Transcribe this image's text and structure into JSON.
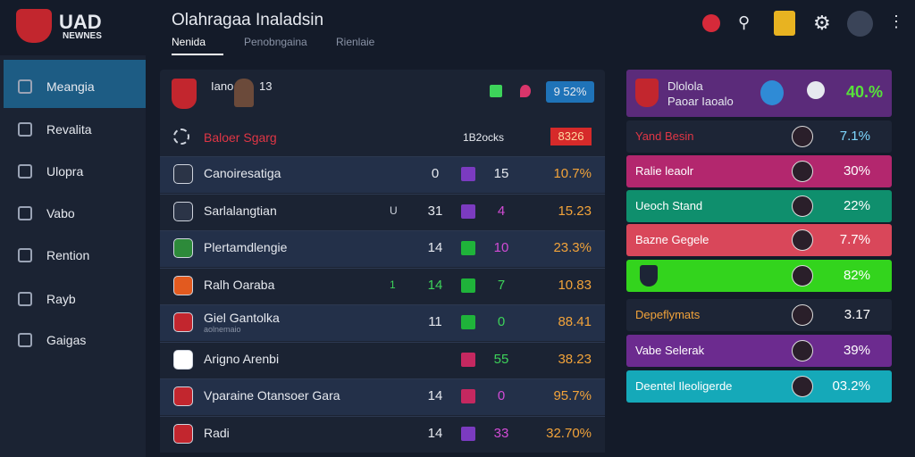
{
  "logo": {
    "top": "UAD",
    "bottom": "NEWNES"
  },
  "header": {
    "title": "Olahragaa Inaladsin",
    "tabs": [
      "Nenida",
      "Penobngaina",
      "Rienlaie"
    ]
  },
  "sidebar": {
    "items": [
      "Meangia",
      "Revalita",
      "Ulopra",
      "Vabo",
      "Rention",
      "Rayb",
      "Gaigas"
    ]
  },
  "table": {
    "top": {
      "name": "Iano",
      "number": "13",
      "badge": "9 52%"
    },
    "header": {
      "name": "Baloer Sgarg",
      "column": "1B2ocks",
      "value": "8326"
    },
    "rows": [
      {
        "name": "Canoiresatiga",
        "mark": null,
        "a": "0",
        "b": "15",
        "pct": "10.7%"
      },
      {
        "name": "Sarlalangtian",
        "mark": "U",
        "a": "31",
        "b": "4",
        "pct": "15.23"
      },
      {
        "name": "Plertamdlengie",
        "mark": null,
        "a": "14",
        "b": "10",
        "pct": "23.3%"
      },
      {
        "name": "Ralh Oaraba",
        "mark": "1",
        "a": "14",
        "b": "7",
        "pct": "10.83"
      },
      {
        "name": "Giel Gantolka",
        "sub": "aolnemaio",
        "mark": null,
        "a": "11",
        "b": "0",
        "pct": "88.41"
      },
      {
        "name": "Arigno Arenbi",
        "mark": null,
        "a": null,
        "b": "55",
        "pct": "38.23"
      },
      {
        "name": "Vparaine Otansoer Gara",
        "mark": null,
        "a": "14",
        "b": "0",
        "pct": "95.7%"
      },
      {
        "name": "Radi",
        "mark": null,
        "a": "14",
        "b": "33",
        "pct": "32.70%"
      }
    ]
  },
  "panel": {
    "top": {
      "line1": "Dlolola",
      "line2": "Paoar Iaoalo",
      "pct": "40.%"
    },
    "rows": [
      {
        "name": "Yand Besin",
        "pct": "7.1%"
      },
      {
        "name": "Ralie leaolr",
        "pct": "30%"
      },
      {
        "name": "Ueoch Stand",
        "pct": "22%"
      },
      {
        "name": "Bazne Gegele",
        "pct": "7.7%"
      },
      {
        "name": null,
        "pct": "82%"
      },
      {
        "name": "Depeflymats",
        "pct": "3.17"
      },
      {
        "name": "Vabe Selerak",
        "pct": "39%"
      },
      {
        "name": "Deentel Ileoligerde",
        "pct": "03.2%"
      }
    ]
  }
}
